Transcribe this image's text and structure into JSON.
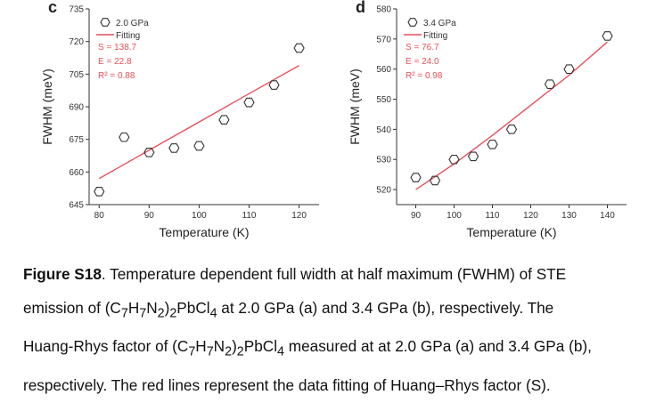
{
  "chart_data": [
    {
      "panel_letter": "c",
      "type": "scatter",
      "xlabel": "Temperature (K)",
      "ylabel": "FWHM (meV)",
      "xlim": [
        78,
        124
      ],
      "ylim": [
        645,
        735
      ],
      "xticks": [
        80,
        90,
        100,
        110,
        120
      ],
      "yticks": [
        645,
        660,
        675,
        690,
        705,
        720,
        735
      ],
      "series": [
        {
          "name": "2.0 GPa",
          "marker": "hexagon-open",
          "x": [
            80,
            85,
            90,
            95,
            100,
            105,
            110,
            115,
            120
          ],
          "y": [
            651,
            676,
            669,
            671,
            672,
            684,
            692,
            700,
            717
          ]
        },
        {
          "name": "Fitting",
          "type": "line",
          "color": "#e8505b",
          "x": [
            80,
            90,
            100,
            110,
            120
          ],
          "y": [
            657,
            670,
            683,
            696,
            709
          ]
        }
      ],
      "annotation": {
        "S": "S = 138.7",
        "E": "E = 22.8",
        "R2": "R² = 0.88"
      }
    },
    {
      "panel_letter": "d",
      "type": "scatter",
      "xlabel": "Temperature (K)",
      "ylabel": "FWHM (meV)",
      "xlim": [
        85,
        145
      ],
      "ylim": [
        515,
        580
      ],
      "xticks": [
        90,
        100,
        110,
        120,
        130,
        140
      ],
      "yticks": [
        520,
        530,
        540,
        550,
        560,
        570,
        580
      ],
      "series": [
        {
          "name": "3.4 GPa",
          "marker": "hexagon-open",
          "x": [
            90,
            95,
            100,
            105,
            110,
            115,
            125,
            130,
            140
          ],
          "y": [
            524,
            523,
            530,
            531,
            535,
            540,
            555,
            560,
            571
          ]
        },
        {
          "name": "Fitting",
          "type": "line",
          "color": "#e8505b",
          "x": [
            90,
            100,
            110,
            120,
            130,
            140
          ],
          "y": [
            520,
            528.5,
            538,
            548,
            558,
            569
          ]
        }
      ],
      "annotation": {
        "S": "S = 76.7",
        "E": "E = 24.0",
        "R2": "R² = 0.98"
      }
    }
  ],
  "caption": {
    "label": "Figure S18",
    "line1": "Temperature dependent full width at half maximum (FWHM) of STE",
    "line2_a": "emission of (C",
    "s7a": "7",
    "h": "H",
    "s7b": "7",
    "n": "N",
    "s2a": "2",
    "paren": ")",
    "s2b": "2",
    "pbcl": "PbCl",
    "s4": "4",
    "line2_b": " at 2.0 GPa (a) and 3.4 GPa (b), respectively. The",
    "line3_a": "Huang-Rhys factor of (C",
    "line3_b": " measured at at 2.0 GPa (a) and 3.4 GPa (b),",
    "line4": "respectively. The red lines represent the data fitting of Huang–Rhys factor (S)."
  }
}
